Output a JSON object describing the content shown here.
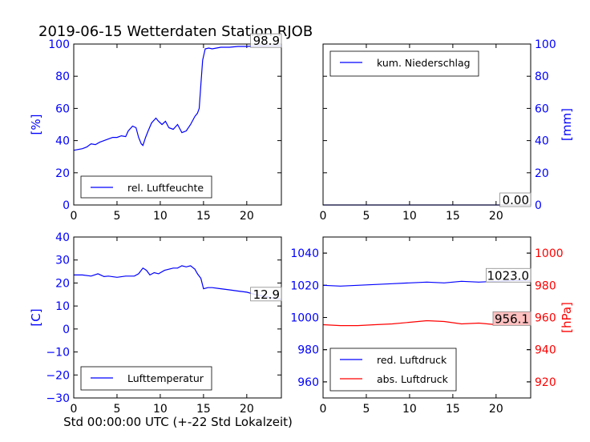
{
  "title": "2019-06-15 Wetterdaten Station RJOB",
  "footer_xlabel": "Std 00:00:00 UTC (+-22 Std Lokalzeit)",
  "colors": {
    "blue": "#0000ff",
    "red": "#ff0000",
    "black": "#000000",
    "box_highlight": "#ffc0c0"
  },
  "chart_data": [
    {
      "id": "humidity",
      "type": "line",
      "ylabel": "[%]",
      "ylabel_side": "left",
      "xlim": [
        0,
        24
      ],
      "ylim": [
        0,
        100
      ],
      "xticks": [
        0,
        5,
        10,
        15,
        20
      ],
      "yticks": [
        0,
        20,
        40,
        60,
        80,
        100
      ],
      "legend_placement": "lower-left",
      "series": [
        {
          "name": "rel. Luftfeuchte",
          "color": "#0000ff",
          "x": [
            0,
            0.5,
            1,
            1.5,
            2,
            2.5,
            3,
            3.5,
            4,
            4.5,
            5,
            5.5,
            6,
            6.3,
            6.8,
            7.2,
            7.5,
            7.8,
            8.0,
            8.3,
            8.6,
            9.0,
            9.5,
            9.8,
            10.2,
            10.6,
            11.0,
            11.5,
            12.0,
            12.5,
            13.0,
            13.5,
            14.0,
            14.3,
            14.5,
            14.7,
            14.9,
            15.2,
            15.6,
            16,
            17,
            18,
            19,
            20,
            21,
            22,
            23,
            24
          ],
          "y": [
            34,
            34.5,
            35,
            36,
            38,
            37.5,
            39,
            40,
            41,
            42,
            42,
            43,
            42.5,
            46,
            49,
            48,
            42,
            38,
            37,
            42,
            46,
            51,
            54,
            52,
            50,
            52,
            48,
            47,
            50,
            45,
            46,
            50,
            55,
            57,
            60,
            75,
            90,
            97,
            97.5,
            97,
            98,
            98,
            98.5,
            98.5,
            98.8,
            98.8,
            98.9,
            98.9
          ]
        }
      ],
      "annotation": {
        "text": "98.9",
        "at_x": 24,
        "at_y": 98.9
      }
    },
    {
      "id": "precip",
      "type": "line",
      "ylabel": "[mm]",
      "ylabel_side": "right",
      "xlim": [
        0,
        24
      ],
      "ylim": [
        0,
        100
      ],
      "xticks": [
        0,
        5,
        10,
        15,
        20
      ],
      "yticks": [
        0,
        20,
        40,
        60,
        80,
        100
      ],
      "legend_placement": "upper-left",
      "series": [
        {
          "name": "kum. Niederschlag",
          "color": "#0000ff",
          "x": [
            0,
            24
          ],
          "y": [
            0,
            0
          ]
        }
      ],
      "annotation": {
        "text": "0.00",
        "at_x": 24,
        "at_y": 0
      }
    },
    {
      "id": "temperature",
      "type": "line",
      "ylabel": "[C]",
      "ylabel_side": "left",
      "xlim": [
        0,
        24
      ],
      "ylim": [
        -30,
        40
      ],
      "xticks": [
        0,
        5,
        10,
        15,
        20
      ],
      "yticks": [
        -30,
        -20,
        -10,
        0,
        10,
        20,
        30,
        40
      ],
      "legend_placement": "lower-left",
      "series": [
        {
          "name": "Lufttemperatur",
          "color": "#0000ff",
          "x": [
            0,
            1,
            2,
            2.8,
            3.5,
            4,
            5,
            6,
            7,
            7.5,
            8,
            8.4,
            8.8,
            9.3,
            9.8,
            10.5,
            11,
            11.5,
            12,
            12.5,
            13,
            13.5,
            14,
            14.3,
            14.7,
            15,
            15.5,
            16,
            17,
            18,
            19,
            20,
            21,
            22,
            23,
            24
          ],
          "y": [
            23.5,
            23.5,
            23,
            24,
            22.8,
            23,
            22.5,
            23,
            23,
            24,
            26.5,
            25.5,
            23.5,
            24.5,
            24,
            25.5,
            26,
            26.5,
            26.5,
            27.5,
            27,
            27.5,
            26,
            24,
            22,
            17.5,
            18,
            18,
            17.5,
            17,
            16.5,
            16,
            15,
            14.2,
            13.5,
            12.9
          ]
        }
      ],
      "annotation": {
        "text": "12.9",
        "at_x": 24,
        "at_y": 12.9
      }
    },
    {
      "id": "pressure",
      "type": "line",
      "ylabel": "[hPa]",
      "ylabel_side": "right",
      "xlim": [
        0,
        24
      ],
      "ylim_left": [
        950,
        1050
      ],
      "ylim_right": [
        910,
        1010
      ],
      "xticks": [
        0,
        5,
        10,
        15,
        20
      ],
      "yticks_left": [
        960,
        980,
        1000,
        1020,
        1040
      ],
      "yticks_right": [
        920,
        940,
        960,
        980,
        1000
      ],
      "legend_placement": "lower-left",
      "series": [
        {
          "name": "red. Luftdruck",
          "color": "#0000ff",
          "axis": "left",
          "x": [
            0,
            2,
            4,
            6,
            8,
            10,
            12,
            14,
            16,
            18,
            20,
            22,
            24
          ],
          "y": [
            1020,
            1019.5,
            1020,
            1020.5,
            1021,
            1021.5,
            1022,
            1021.5,
            1022.5,
            1022,
            1022.5,
            1023,
            1023.0
          ]
        },
        {
          "name": "abs. Luftdruck",
          "color": "#ff0000",
          "axis": "right",
          "x": [
            0,
            2,
            4,
            6,
            8,
            10,
            12,
            14,
            16,
            18,
            20,
            22,
            24
          ],
          "y": [
            955.5,
            955,
            955,
            955.5,
            956,
            957,
            958,
            957.5,
            956,
            956.5,
            955.5,
            956,
            956.1
          ]
        }
      ],
      "annotations": [
        {
          "text": "1023.0",
          "at_x": 24,
          "at_y": 1023.0,
          "axis": "left",
          "highlight": false
        },
        {
          "text": "956.1",
          "at_x": 24,
          "at_y": 956.1,
          "axis": "right",
          "highlight": true
        }
      ]
    }
  ]
}
